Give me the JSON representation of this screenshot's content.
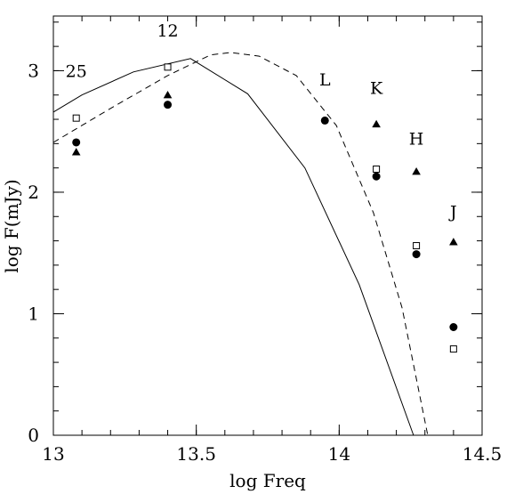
{
  "chart_data": {
    "type": "scatter",
    "xlabel": "log Freq",
    "ylabel": "log F(mJy)",
    "xlim": [
      13.0,
      14.5
    ],
    "ylim": [
      0,
      3.45
    ],
    "xticks": [
      "13",
      "13.5",
      "14",
      "14.5"
    ],
    "yticks": [
      "0",
      "1",
      "2",
      "3"
    ],
    "grid": false,
    "series": [
      {
        "marker": "circle-filled",
        "color": "#000000",
        "points": [
          {
            "x": 13.08,
            "y": 2.41
          },
          {
            "x": 13.4,
            "y": 2.72
          },
          {
            "x": 13.95,
            "y": 2.59
          },
          {
            "x": 14.13,
            "y": 2.13
          },
          {
            "x": 14.27,
            "y": 1.49
          },
          {
            "x": 14.4,
            "y": 0.89
          }
        ]
      },
      {
        "marker": "triangle-filled",
        "color": "#000000",
        "points": [
          {
            "x": 13.08,
            "y": 2.33
          },
          {
            "x": 13.4,
            "y": 2.8
          },
          {
            "x": 14.13,
            "y": 2.56
          },
          {
            "x": 14.27,
            "y": 2.17
          },
          {
            "x": 14.4,
            "y": 1.59
          }
        ]
      },
      {
        "marker": "square-open",
        "color": "#000000",
        "points": [
          {
            "x": 13.08,
            "y": 2.61
          },
          {
            "x": 13.4,
            "y": 3.03
          },
          {
            "x": 14.13,
            "y": 2.19
          },
          {
            "x": 14.27,
            "y": 1.56
          },
          {
            "x": 14.4,
            "y": 0.71
          }
        ]
      }
    ],
    "curves": [
      {
        "style": "solid",
        "points": [
          {
            "x": 13.0,
            "y": 2.66
          },
          {
            "x": 13.1,
            "y": 2.8
          },
          {
            "x": 13.28,
            "y": 2.99
          },
          {
            "x": 13.48,
            "y": 3.1
          },
          {
            "x": 13.68,
            "y": 2.81
          },
          {
            "x": 13.88,
            "y": 2.2
          },
          {
            "x": 14.07,
            "y": 1.24
          },
          {
            "x": 14.26,
            "y": 0.0
          }
        ]
      },
      {
        "style": "dashed",
        "points": [
          {
            "x": 13.0,
            "y": 2.41
          },
          {
            "x": 13.2,
            "y": 2.69
          },
          {
            "x": 13.4,
            "y": 2.96
          },
          {
            "x": 13.55,
            "y": 3.13
          },
          {
            "x": 13.62,
            "y": 3.15
          },
          {
            "x": 13.72,
            "y": 3.12
          },
          {
            "x": 13.85,
            "y": 2.96
          },
          {
            "x": 13.99,
            "y": 2.55
          },
          {
            "x": 14.12,
            "y": 1.83
          },
          {
            "x": 14.22,
            "y": 1.05
          },
          {
            "x": 14.31,
            "y": 0.0
          }
        ]
      }
    ],
    "annotations": [
      {
        "text": "25",
        "x": 13.08,
        "y": 2.95
      },
      {
        "text": "12",
        "x": 13.4,
        "y": 3.28
      },
      {
        "text": "L",
        "x": 13.95,
        "y": 2.88
      },
      {
        "text": "K",
        "x": 14.13,
        "y": 2.81
      },
      {
        "text": "H",
        "x": 14.27,
        "y": 2.39
      },
      {
        "text": "J",
        "x": 14.4,
        "y": 1.79
      }
    ]
  }
}
